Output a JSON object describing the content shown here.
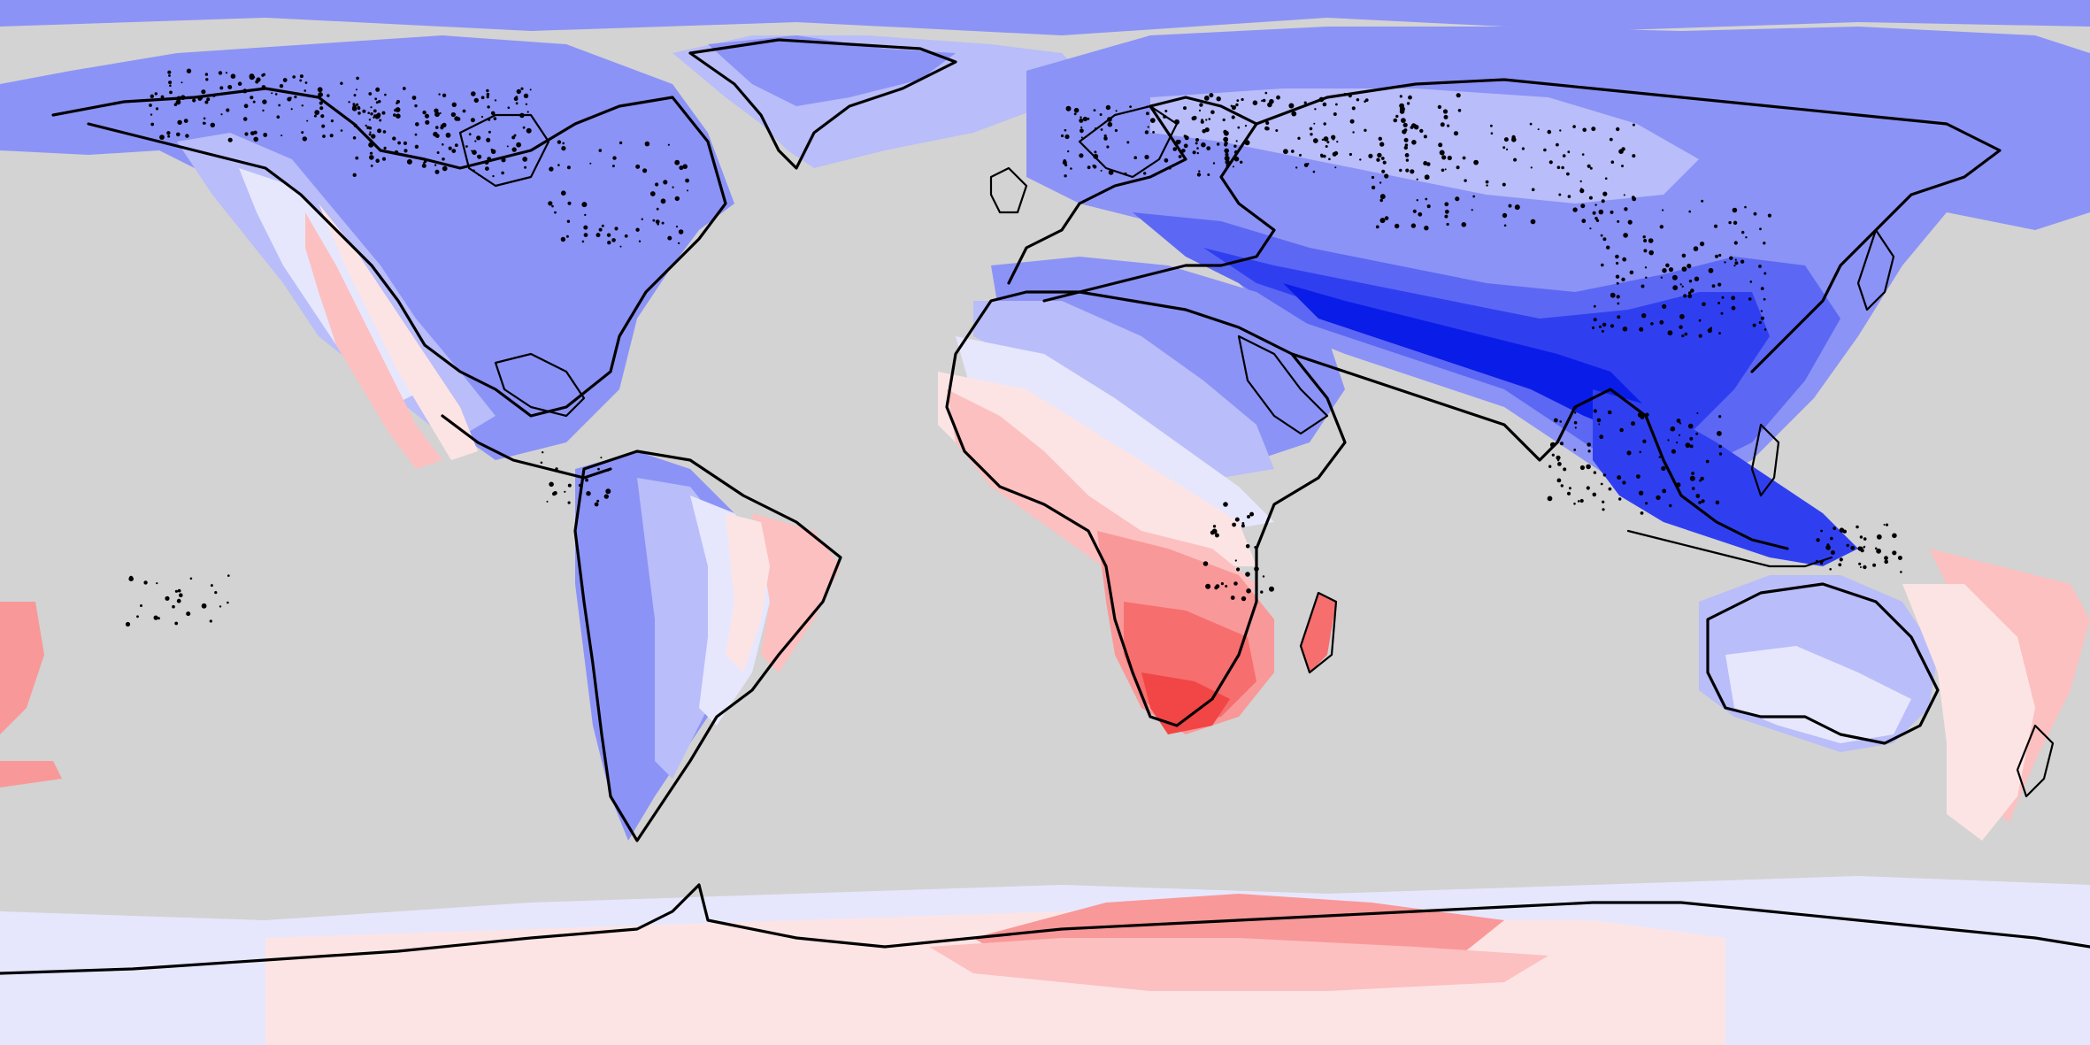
{
  "map": {
    "projection": "equirectangular",
    "ocean_color": "#d3d3d3",
    "coastline_color": "#000000",
    "palette": {
      "blue_5": "#0a1ce8",
      "blue_4": "#2f3ff0",
      "blue_3": "#5c68f4",
      "blue_2": "#8c93f6",
      "blue_1": "#b9bdf9",
      "blue_0": "#e6e7fd",
      "red_0": "#fde4e4",
      "red_1": "#fcc0c0",
      "red_2": "#f99898",
      "red_3": "#f66e6e",
      "red_4": "#f24545"
    }
  }
}
